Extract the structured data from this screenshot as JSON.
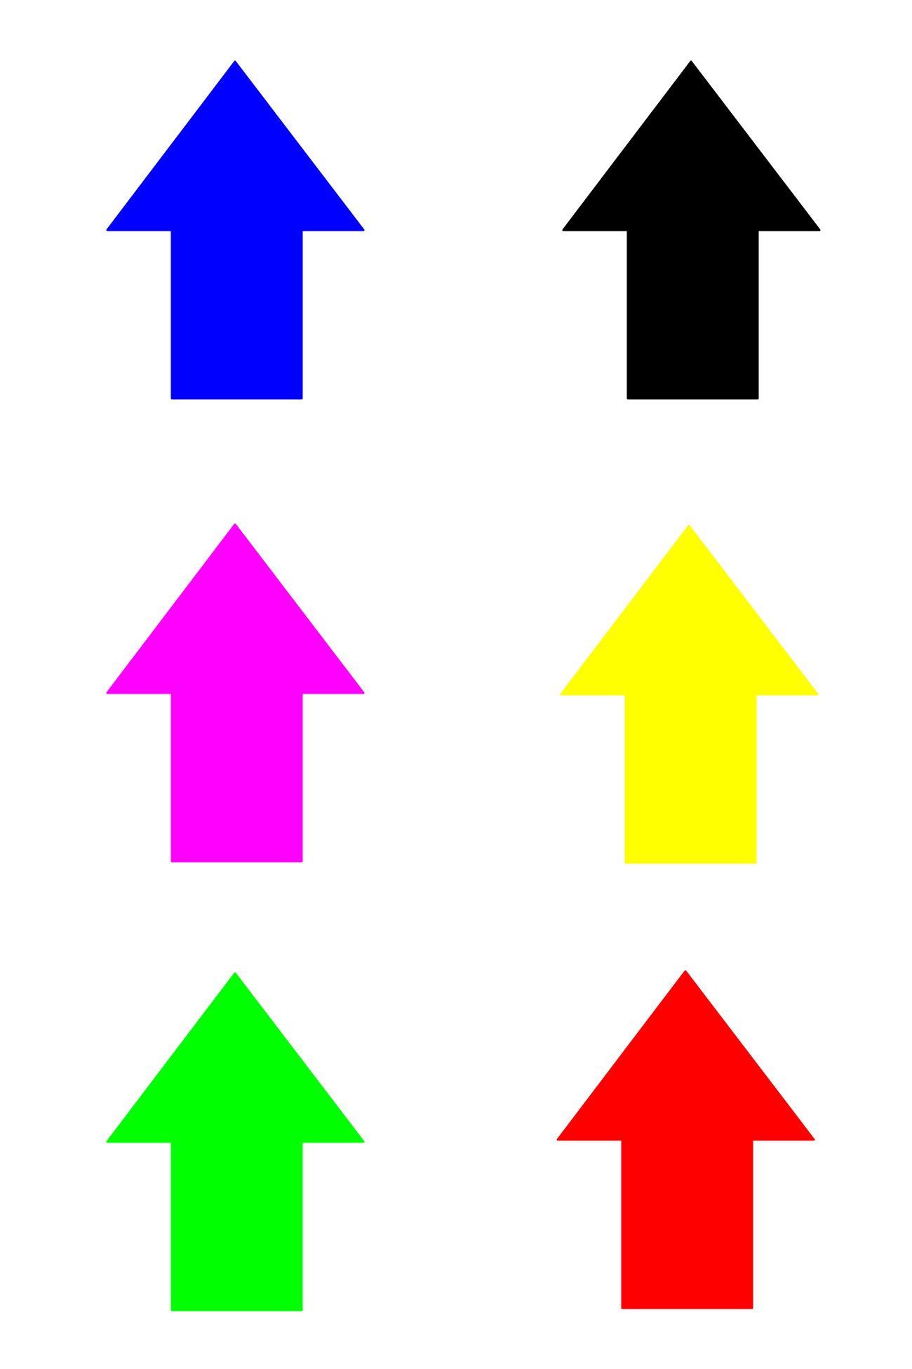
{
  "arrows": [
    {
      "name": "blue-up-arrow",
      "icon": "arrow-up-icon",
      "direction": "up",
      "color": "#0000ff"
    },
    {
      "name": "black-up-arrow",
      "icon": "arrow-up-icon",
      "direction": "up",
      "color": "#000000"
    },
    {
      "name": "magenta-up-arrow",
      "icon": "arrow-up-icon",
      "direction": "up",
      "color": "#ff00ff"
    },
    {
      "name": "yellow-up-arrow",
      "icon": "arrow-up-icon",
      "direction": "up",
      "color": "#ffff00"
    },
    {
      "name": "green-up-arrow",
      "icon": "arrow-up-icon",
      "direction": "up",
      "color": "#00ff00"
    },
    {
      "name": "red-up-arrow",
      "icon": "arrow-up-icon",
      "direction": "up",
      "color": "#ff0000"
    }
  ],
  "background": "#ffffff"
}
